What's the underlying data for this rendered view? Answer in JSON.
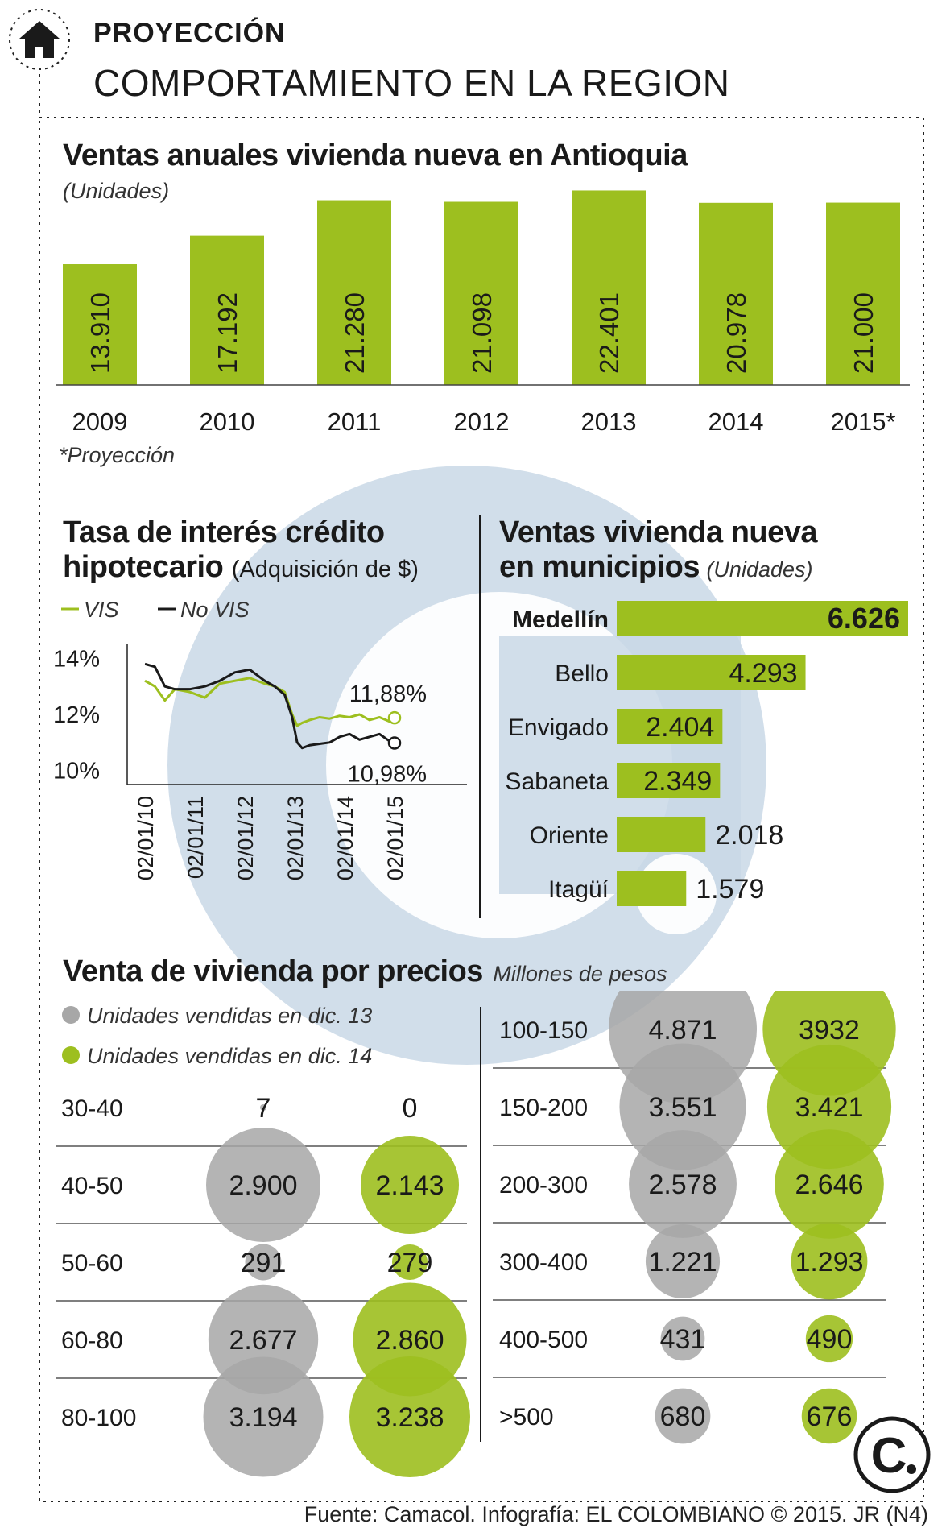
{
  "header": {
    "kicker": "PROYECCIÓN",
    "headline": "COMPORTAMIENTO EN LA REGION"
  },
  "colors": {
    "green": "#9dbf1f",
    "green_dark": "#7ea50f",
    "gray_bubble": "#a7a7a7",
    "watermark": "#c9d8e6"
  },
  "icons": {
    "home": "home-icon",
    "logo": "el-colombiano-logo"
  },
  "chart_data": [
    {
      "type": "bar",
      "title": "Ventas anuales vivienda nueva en Antioquia",
      "subtitle": "(Unidades)",
      "categories": [
        "2009",
        "2010",
        "2011",
        "2012",
        "2013",
        "2014",
        "2015*"
      ],
      "values": [
        13910,
        17192,
        21280,
        21098,
        22401,
        20978,
        21000
      ],
      "value_labels": [
        "13.910",
        "17.192",
        "21.280",
        "21.098",
        "22.401",
        "20.978",
        "21.000"
      ],
      "note": "*Proyección",
      "ylim": [
        0,
        23000
      ],
      "color": "#9dbf1f"
    },
    {
      "type": "line",
      "title": "Tasa de interés crédito hipotecario",
      "subtitle": "(Adquisición de $)",
      "yticks": [
        "14%",
        "12%",
        "10%"
      ],
      "ylim": [
        9.5,
        14.5
      ],
      "xticks": [
        "02/01/10",
        "02/01/11",
        "02/01/12",
        "02/01/13",
        "02/01/14",
        "02/01/15"
      ],
      "series": [
        {
          "name": "VIS",
          "color": "#9dbf1f",
          "x": [
            0,
            0.2,
            0.4,
            0.6,
            0.9,
            1.2,
            1.5,
            1.8,
            2.1,
            2.4,
            2.6,
            2.8,
            2.95,
            3.05,
            3.15,
            3.3,
            3.5,
            3.7,
            3.9,
            4.1,
            4.3,
            4.5,
            4.7,
            4.9,
            5.0
          ],
          "values": [
            13.2,
            13.0,
            12.5,
            12.9,
            12.8,
            12.6,
            13.1,
            13.2,
            13.3,
            13.1,
            13.0,
            12.8,
            12.0,
            11.6,
            11.7,
            11.8,
            11.9,
            11.85,
            11.95,
            11.9,
            12.0,
            11.8,
            11.9,
            11.75,
            11.88
          ],
          "end_label": "11,88%"
        },
        {
          "name": "No VIS",
          "color": "#1a1a1a",
          "x": [
            0,
            0.2,
            0.4,
            0.6,
            0.9,
            1.2,
            1.5,
            1.8,
            2.1,
            2.4,
            2.6,
            2.8,
            2.95,
            3.05,
            3.15,
            3.3,
            3.5,
            3.7,
            3.9,
            4.1,
            4.3,
            4.5,
            4.7,
            4.9,
            5.0
          ],
          "values": [
            13.8,
            13.7,
            13.0,
            12.9,
            12.9,
            13.0,
            13.2,
            13.5,
            13.6,
            13.2,
            13.0,
            12.7,
            11.9,
            11.0,
            10.8,
            10.9,
            10.95,
            11.0,
            11.2,
            11.3,
            11.1,
            11.2,
            11.3,
            11.05,
            10.98
          ],
          "end_label": "10,98%"
        }
      ]
    },
    {
      "type": "bar",
      "orientation": "horizontal",
      "title": "Ventas vivienda nueva en municipios",
      "subtitle": "(Unidades)",
      "categories": [
        "Medellín",
        "Bello",
        "Envigado",
        "Sabaneta",
        "Oriente",
        "Itagüí"
      ],
      "values": [
        6626,
        4293,
        2404,
        2349,
        2018,
        1579
      ],
      "value_labels": [
        "6.626",
        "4.293",
        "2.404",
        "2.349",
        "2.018",
        "1.579"
      ],
      "color": "#9dbf1f"
    },
    {
      "type": "scatter",
      "subtype": "bubble",
      "title": "Venta de vivienda por precios",
      "subtitle": "Millones de pesos",
      "categories": [
        "30-40",
        "40-50",
        "50-60",
        "60-80",
        "80-100",
        "100-150",
        "150-200",
        "200-300",
        "300-400",
        "400-500",
        ">500"
      ],
      "series": [
        {
          "name": "Unidades vendidas en dic. 13",
          "color": "#a7a7a7",
          "values": [
            7,
            2900,
            291,
            2677,
            3194,
            4871,
            3551,
            2578,
            1221,
            431,
            680
          ],
          "labels": [
            "7",
            "2.900",
            "291",
            "2.677",
            "3.194",
            "4.871",
            "3.551",
            "2.578",
            "1.221",
            "431",
            "680"
          ]
        },
        {
          "name": "Unidades vendidas en dic. 14",
          "color": "#9dbf1f",
          "values": [
            0,
            2143,
            279,
            2860,
            3238,
            3932,
            3421,
            2646,
            1293,
            490,
            676
          ],
          "labels": [
            "0",
            "2.143",
            "279",
            "2.860",
            "3.238",
            "3932",
            "3.421",
            "2.646",
            "1.293",
            "490",
            "676"
          ]
        }
      ]
    }
  ],
  "source": "Fuente: Camacol. Infografía: EL COLOMBIANO © 2015. JR (N4)"
}
